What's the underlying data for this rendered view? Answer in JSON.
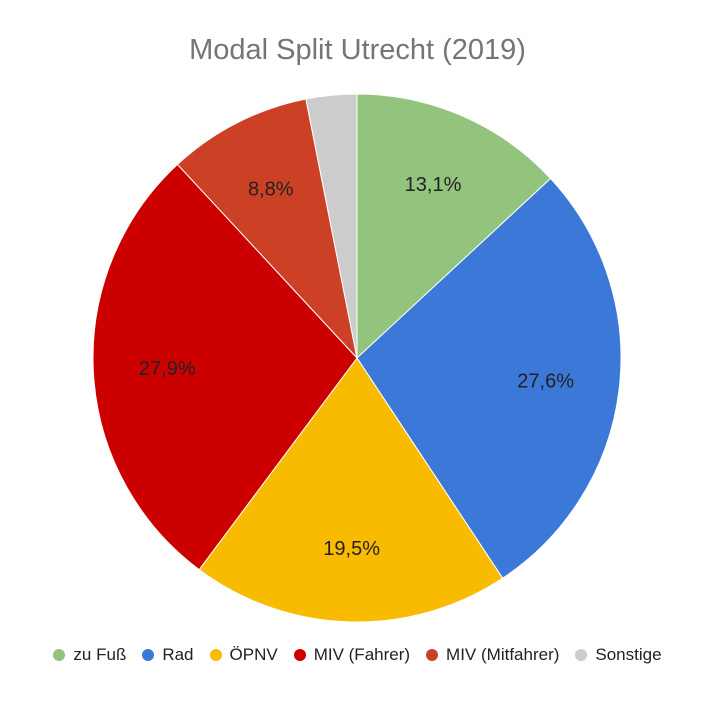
{
  "chart_data": {
    "type": "pie",
    "title": "Modal Split Utrecht (2019)",
    "slices": [
      {
        "label": "zu Fuß",
        "value": 13.1,
        "value_label": "13,1%",
        "color": "#93c47d"
      },
      {
        "label": "Rad",
        "value": 27.6,
        "value_label": "27,6%",
        "color": "#3c78d8"
      },
      {
        "label": "ÖPNV",
        "value": 19.5,
        "value_label": "19,5%",
        "color": "#f9bb00"
      },
      {
        "label": "MIV (Fahrer)",
        "value": 27.9,
        "value_label": "27,9%",
        "color": "#cc0000"
      },
      {
        "label": "MIV (Mitfahrer)",
        "value": 8.8,
        "value_label": "8,8%",
        "color": "#cc4125"
      },
      {
        "label": "Sonstige",
        "value": 3.1,
        "value_label": "",
        "color": "#cccccc"
      }
    ],
    "legend_position": "bottom",
    "start_angle": "top, clockwise"
  }
}
